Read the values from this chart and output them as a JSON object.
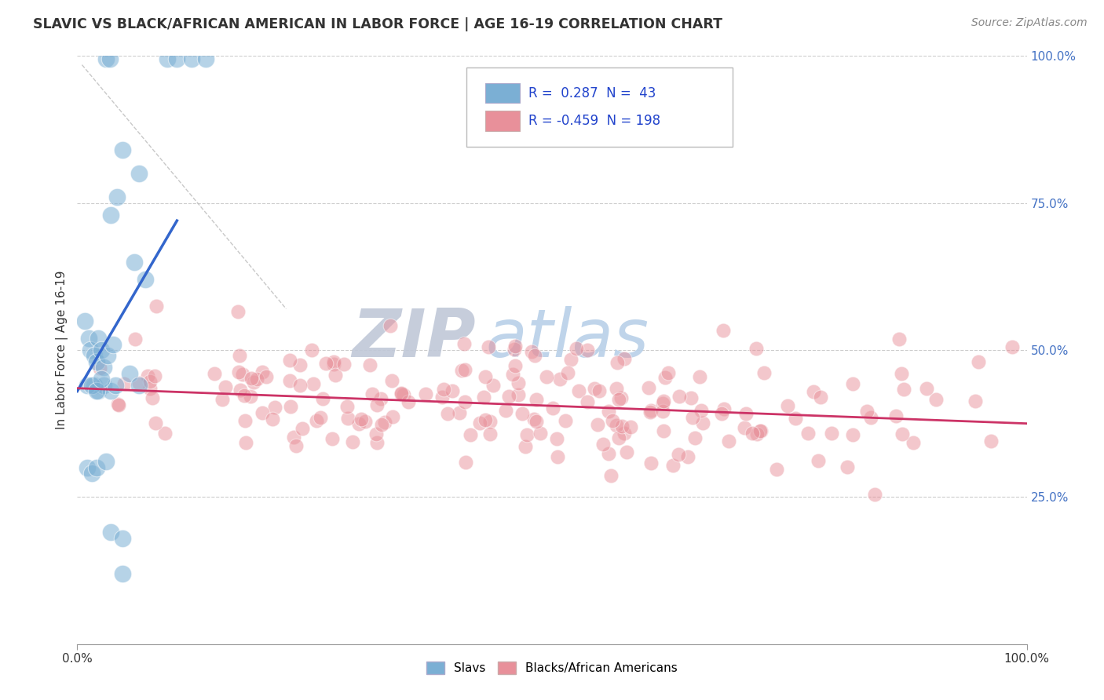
{
  "title": "SLAVIC VS BLACK/AFRICAN AMERICAN IN LABOR FORCE | AGE 16-19 CORRELATION CHART",
  "source_text": "Source: ZipAtlas.com",
  "ylabel": "In Labor Force | Age 16-19",
  "xlim": [
    0.0,
    1.0
  ],
  "ylim": [
    0.0,
    1.0
  ],
  "ytick_labels": [
    "100.0%",
    "75.0%",
    "50.0%",
    "25.0%"
  ],
  "ytick_values": [
    1.0,
    0.75,
    0.5,
    0.25
  ],
  "blue_color": "#7bafd4",
  "pink_color": "#e8909a",
  "blue_line_color": "#3366cc",
  "pink_line_color": "#cc3366",
  "watermark_zip": "ZIP",
  "watermark_atlas": "atlas",
  "watermark_zip_color": "#c0c8d8",
  "watermark_atlas_color": "#b8d0e8",
  "background_color": "#ffffff",
  "grid_color": "#cccccc",
  "legend_R1": "0.287",
  "legend_N1": "43",
  "legend_R2": "-0.459",
  "legend_N2": "198",
  "blue_trend_x": [
    0.0,
    0.105
  ],
  "blue_trend_y": [
    0.43,
    0.72
  ],
  "pink_trend_x": [
    0.0,
    1.0
  ],
  "pink_trend_y": [
    0.435,
    0.375
  ],
  "ref_line_x": [
    0.005,
    0.22
  ],
  "ref_line_y": [
    0.985,
    0.57
  ]
}
